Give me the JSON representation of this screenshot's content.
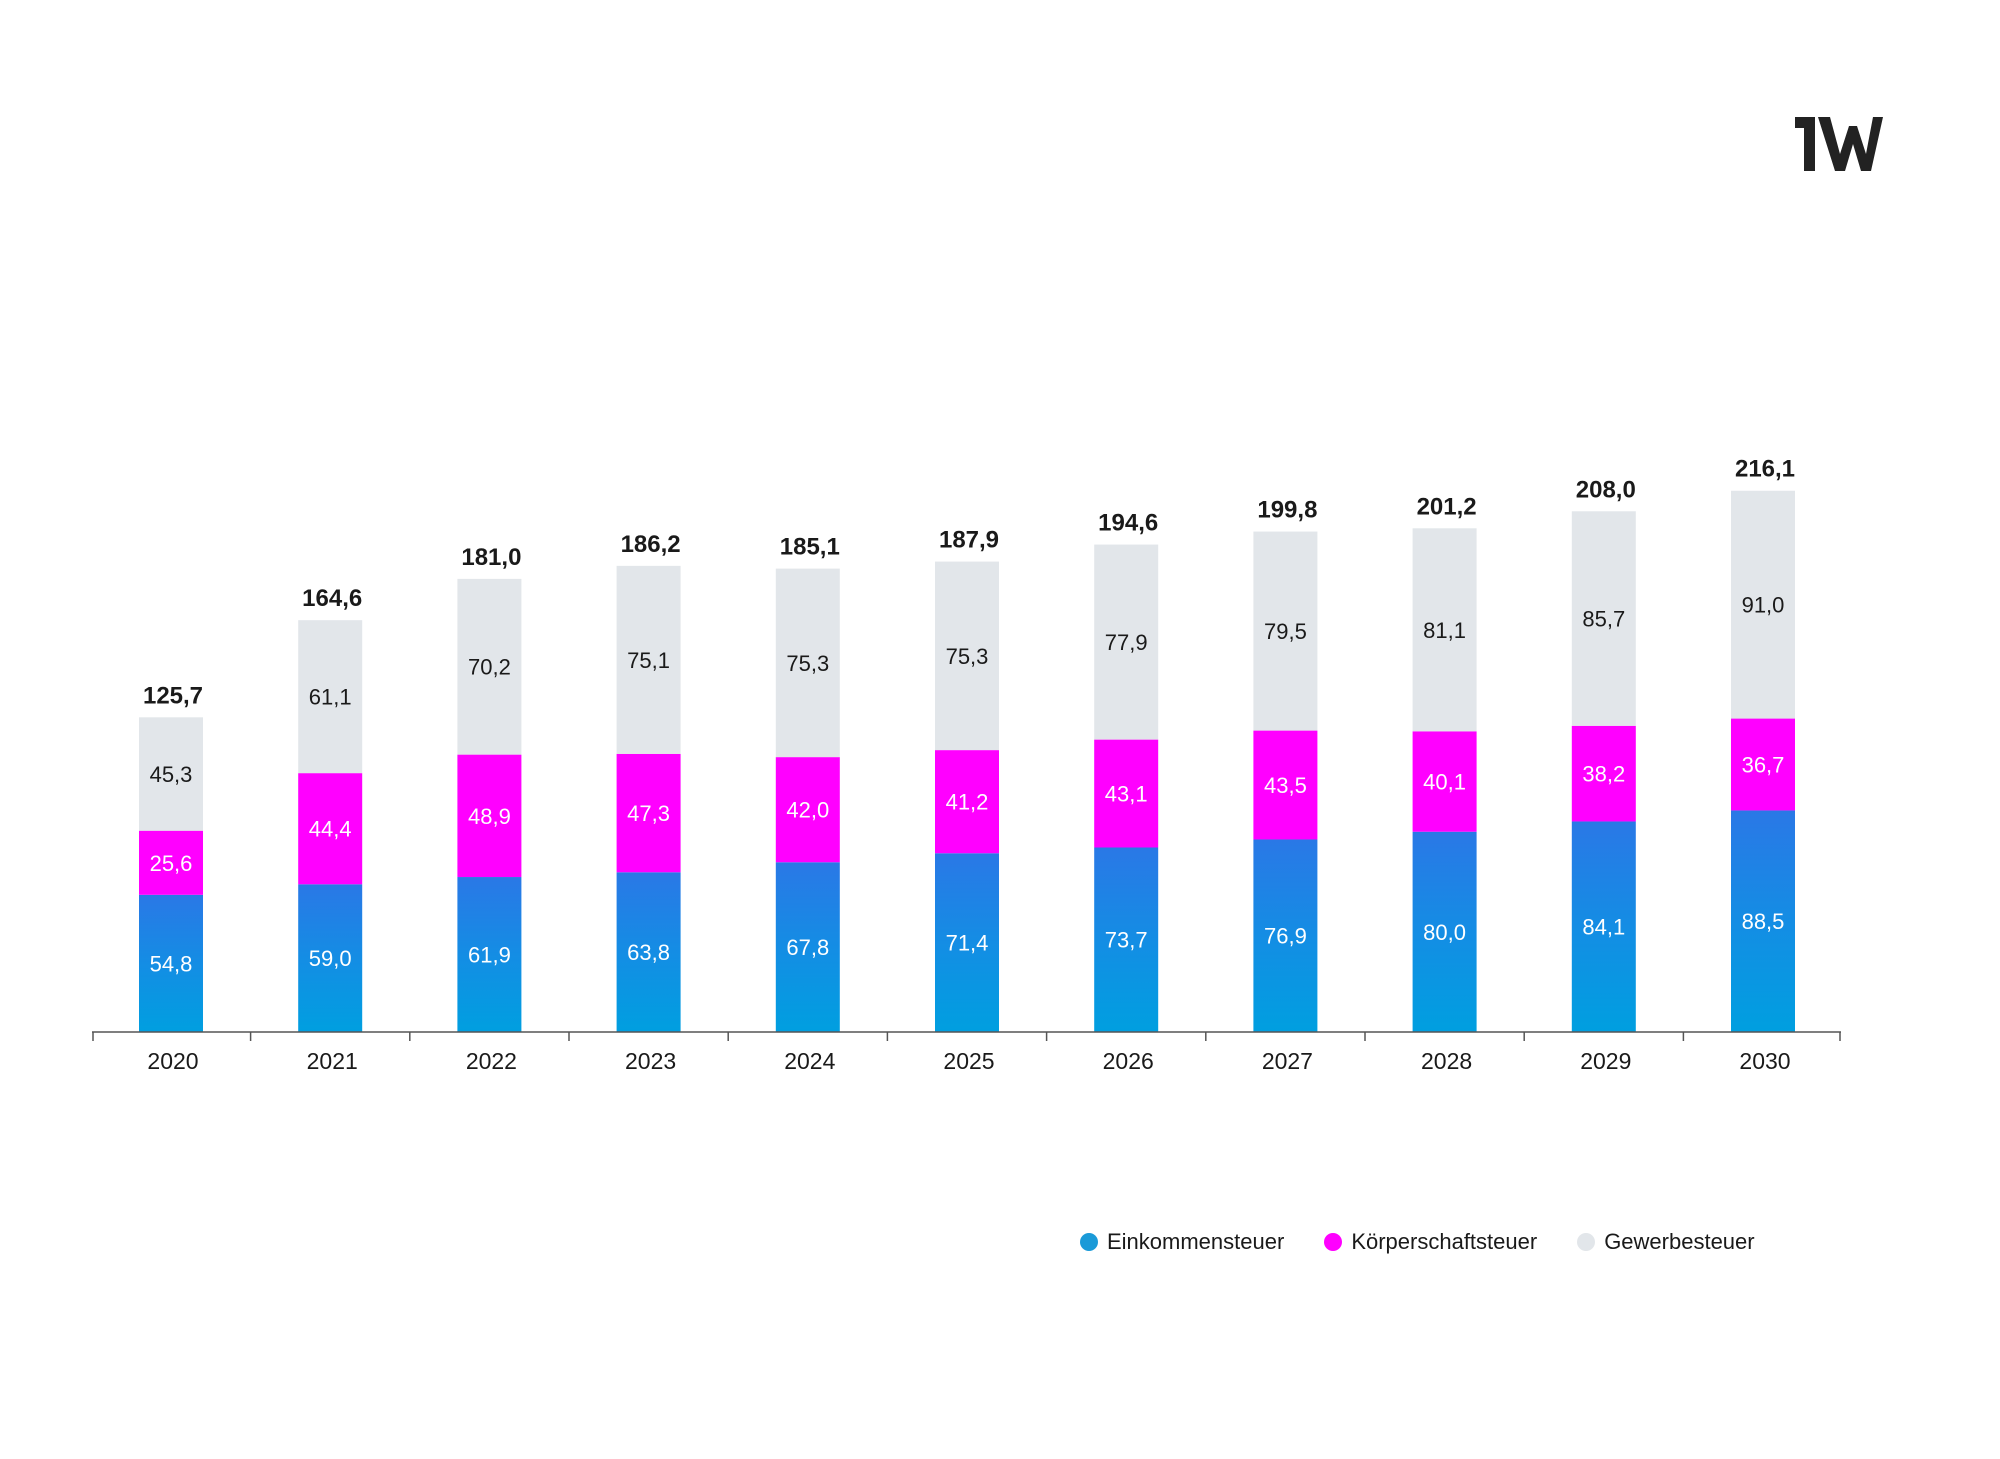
{
  "chart_data": {
    "type": "stacked-bar",
    "title": "",
    "xlabel": "",
    "ylabel": "",
    "ylim": [
      0,
      216.1
    ],
    "grid": false,
    "legend_position": "bottom-right",
    "categories": [
      "2020",
      "2021",
      "2022",
      "2023",
      "2024",
      "2025",
      "2026",
      "2027",
      "2028",
      "2029",
      "2030"
    ],
    "series": [
      {
        "name": "Einkommensteuer",
        "color": "#0a9be0",
        "values": [
          54.8,
          59.0,
          61.9,
          63.8,
          67.8,
          71.4,
          73.7,
          76.9,
          80.0,
          84.1,
          88.5
        ],
        "labels": [
          "54,8",
          "59,0",
          "61,9",
          "63,8",
          "67,8",
          "71,4",
          "73,7",
          "76,9",
          "80,0",
          "84,1",
          "88,5"
        ]
      },
      {
        "name": "Körperschaftsteuer",
        "color": "#ff00ff",
        "values": [
          25.6,
          44.4,
          48.9,
          47.3,
          42.0,
          41.2,
          43.1,
          43.5,
          40.1,
          38.2,
          36.7
        ],
        "labels": [
          "25,6",
          "44,4",
          "48,9",
          "47,3",
          "42,0",
          "41,2",
          "43,1",
          "43,5",
          "40,1",
          "38,2",
          "36,7"
        ]
      },
      {
        "name": "Gewerbesteuer",
        "color": "#e2e6ea",
        "values": [
          45.3,
          61.1,
          70.2,
          75.1,
          75.3,
          75.3,
          77.9,
          79.5,
          81.1,
          85.7,
          91.0
        ],
        "labels": [
          "45,3",
          "61,1",
          "70,2",
          "75,1",
          "75,3",
          "75,3",
          "77,9",
          "79,5",
          "81,1",
          "85,7",
          "91,0"
        ]
      }
    ],
    "totals": [
      125.7,
      164.6,
      181.0,
      186.2,
      185.1,
      187.9,
      194.6,
      199.8,
      201.2,
      208.0,
      216.1
    ],
    "total_labels": [
      "125,7",
      "164,6",
      "181,0",
      "186,2",
      "185,1",
      "187,9",
      "194,6",
      "199,8",
      "201,2",
      "208,0",
      "216,1"
    ]
  },
  "logo": {
    "text": "iW"
  },
  "legend": {
    "items": [
      "Einkommensteuer",
      "Körperschaftsteuer",
      "Gewerbesteuer"
    ]
  }
}
